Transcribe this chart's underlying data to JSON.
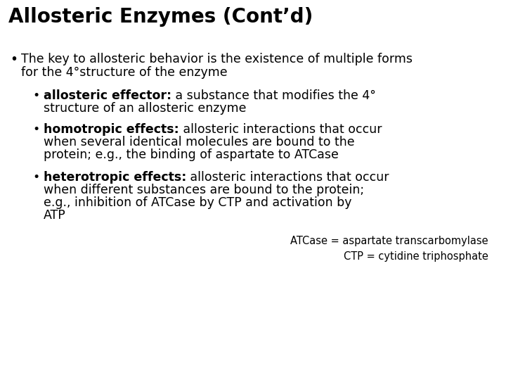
{
  "title": "Allosteric Enzymes (Cont’d)",
  "background_color": "#ffffff",
  "title_fontsize": 20,
  "body_fontsize": 12.5,
  "footnote_fontsize": 10.5,
  "text_color": "#000000",
  "font": "DejaVu Sans",
  "bullet1_line1": "The key to allosteric behavior is the existence of multiple forms",
  "bullet1_line2": "for the 4°structure of the enzyme",
  "sub1_bold": "allosteric effector:",
  "sub1_rest_line1": " a substance that modifies the 4°",
  "sub1_rest_line2": "structure of an allosteric enzyme",
  "sub2_bold": "homotropic effects:",
  "sub2_rest_line1": " allosteric interactions that occur",
  "sub2_rest_line2": "when several identical molecules are bound to the",
  "sub2_rest_line3": "protein; e.g., the binding of aspartate to ATCase",
  "sub3_bold": "heterotropic effects:",
  "sub3_rest_line1": " allosteric interactions that occur",
  "sub3_rest_line2": "when different substances are bound to the protein;",
  "sub3_rest_line3": "e.g., inhibition of ATCase by CTP and activation by",
  "sub3_rest_line4": "ATP",
  "footnote1": "ATCase = aspartate transcarbomylase",
  "footnote2": "CTP = cytidine triphosphate"
}
